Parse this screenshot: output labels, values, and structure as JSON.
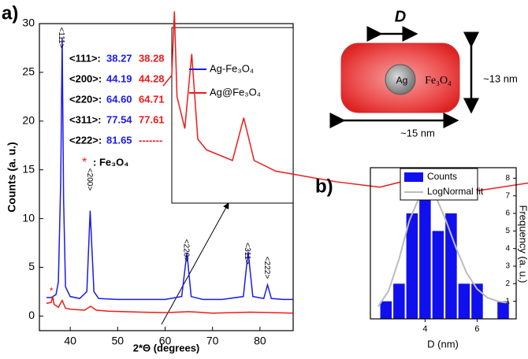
{
  "chart_data": [
    {
      "type": "line",
      "panel_label": "a)",
      "x_label": "2*Θ (degrees)",
      "y_label": "Counts (a. u.)",
      "xlim": [
        33.5,
        87
      ],
      "xticks": [
        40,
        50,
        60,
        70,
        80
      ],
      "ylim": [
        -1.5,
        30
      ],
      "yticks": [
        0,
        5,
        10,
        15,
        20,
        25,
        30
      ],
      "series": [
        {
          "name": "Ag-Fe₃O₄",
          "color": "#1a1aee",
          "x": [
            35,
            36,
            37,
            37.5,
            38,
            38.3,
            38.6,
            39,
            40,
            42,
            43.5,
            44.2,
            45,
            46,
            50,
            55,
            60,
            63.5,
            64.6,
            65.5,
            68,
            72,
            76.5,
            77.5,
            78.5,
            80.8,
            81.6,
            82.4,
            85,
            87
          ],
          "values": [
            1.9,
            1.9,
            2.2,
            3.5,
            14,
            28.5,
            12,
            3,
            2,
            1.8,
            2.5,
            10.8,
            2.5,
            1.8,
            1.7,
            1.7,
            1.7,
            2,
            6.5,
            2,
            1.7,
            1.7,
            2,
            6.6,
            2,
            1.8,
            3.2,
            1.8,
            1.7,
            1.7
          ]
        },
        {
          "name": "Ag@Fe₃O₄",
          "color": "#ee1a1a",
          "x": [
            35,
            36,
            36.3,
            36.6,
            37.5,
            38.3,
            39,
            40,
            43,
            44.3,
            45.5,
            48,
            55,
            60,
            65,
            70,
            78,
            87
          ],
          "values": [
            1.3,
            1.4,
            2.0,
            1.2,
            0.9,
            1.6,
            0.8,
            0.7,
            0.6,
            1.0,
            0.6,
            0.5,
            0.4,
            0.35,
            0.45,
            0.3,
            0.4,
            0.3
          ]
        }
      ],
      "inset_xlim": [
        36,
        50
      ],
      "inset_ylim": [
        0.2,
        1.7
      ],
      "peak_labels": [
        {
          "text": "<111>",
          "x": 38.3
        },
        {
          "text": "<200>",
          "x": 44.2
        },
        {
          "text": "<220>",
          "x": 64.6
        },
        {
          "text": "<311>",
          "x": 77.5
        },
        {
          "text": "<222>",
          "x": 81.6
        }
      ],
      "table": [
        [
          "<111>:",
          "38.27",
          "38.28"
        ],
        [
          "<200>:",
          "44.19",
          "44.28"
        ],
        [
          "<220>:",
          "64.60",
          "64.71"
        ],
        [
          "<311>:",
          "77.54",
          "77.61"
        ],
        [
          "<222>:",
          "81.65",
          "-------"
        ]
      ],
      "marker_note": {
        "symbol": "*",
        "text": ": Fe₃O₄"
      }
    },
    {
      "type": "histogram",
      "panel_label": "b)",
      "x_label": "D (nm)",
      "y_label": "Frequency (a. u.)",
      "xlim": [
        1.9,
        7.5
      ],
      "xticks": [
        4,
        6
      ],
      "ylim": [
        0,
        8.6
      ],
      "yticks": [
        1,
        2,
        3,
        4,
        5,
        6,
        7,
        8
      ],
      "bins": [
        2.25,
        2.75,
        3.25,
        3.75,
        4.25,
        4.75,
        5.25,
        5.75,
        6.25,
        6.75,
        7.25
      ],
      "series": [
        {
          "name": "Counts",
          "color": "#1010ee",
          "values": [
            1,
            2,
            6,
            8,
            5,
            6,
            2,
            2,
            0,
            1
          ]
        },
        {
          "name": "LogNormal fit",
          "color": "#bbbbbb",
          "x": [
            2.2,
            2.6,
            3.0,
            3.4,
            3.8,
            4.1,
            4.4,
            4.8,
            5.2,
            5.6,
            6.0,
            6.4,
            6.8,
            7.2
          ],
          "values": [
            0.7,
            1.6,
            3.4,
            5.6,
            7.0,
            7.3,
            7.0,
            5.6,
            4.0,
            2.6,
            1.7,
            1.2,
            1.0,
            0.9
          ]
        }
      ]
    }
  ],
  "schematic": {
    "diameter": "D",
    "core": "Ag",
    "shell": "Fe₃O₄",
    "height": "~13 nm",
    "width": "~15 nm"
  }
}
